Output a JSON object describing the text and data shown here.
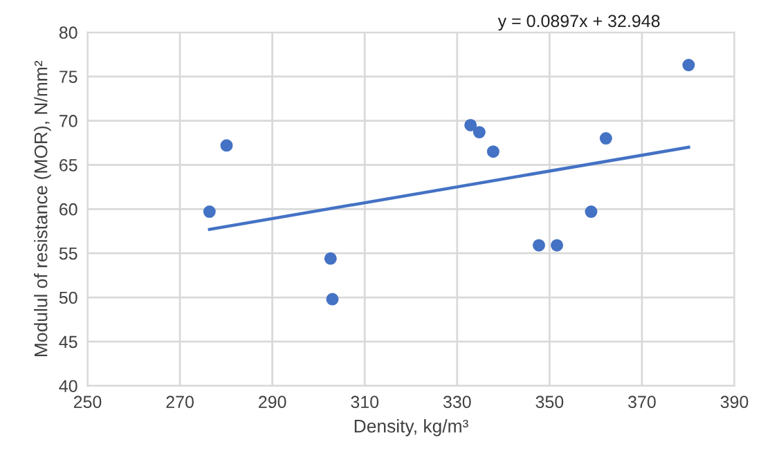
{
  "chart_data": {
    "type": "scatter",
    "xlabel": "Density, kg/m³",
    "ylabel": "Modulul of resistance (MOR), N/mm²",
    "xlim": [
      250,
      390
    ],
    "xticks": [
      250,
      270,
      290,
      310,
      330,
      350,
      370,
      390
    ],
    "ylim": [
      40,
      80
    ],
    "yticks": [
      40,
      45,
      50,
      55,
      60,
      65,
      70,
      75,
      80
    ],
    "grid": true,
    "legend": false,
    "annotations": [
      "y = 0.0897x + 32.948"
    ],
    "series": [
      {
        "marker": "circle",
        "color": "#4472c4",
        "x": [
          276.4,
          280.1,
          302.6,
          303.0,
          332.9,
          334.8,
          337.8,
          347.7,
          351.6,
          359.0,
          362.2,
          380.1
        ],
        "values": [
          59.7,
          67.2,
          54.4,
          49.8,
          69.5,
          68.7,
          66.5,
          55.9,
          55.9,
          59.7,
          68.0,
          76.3
        ]
      },
      {
        "type": "line",
        "color": "#4472c4",
        "x": [
          276.4,
          380.1
        ],
        "values": [
          57.7,
          67.0
        ]
      }
    ]
  }
}
